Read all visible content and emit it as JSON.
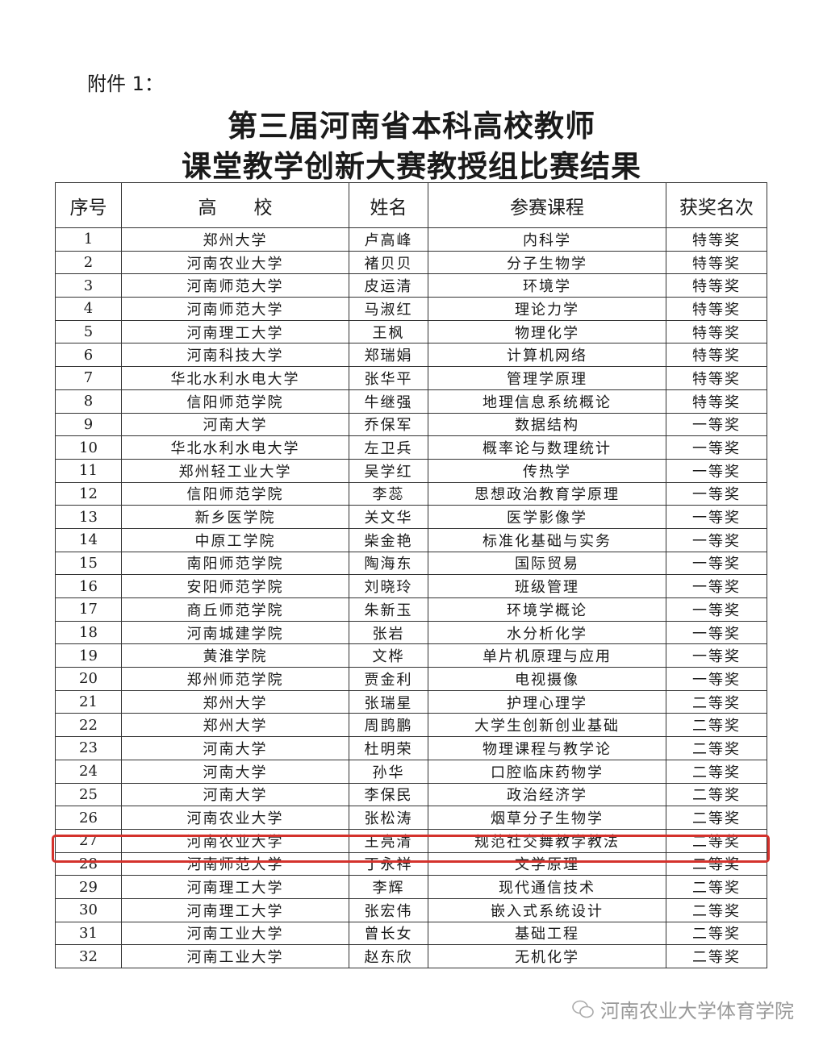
{
  "attachment_label": "附件 1：",
  "title_line1": "第三届河南省本科高校教师",
  "title_line2": "课堂教学创新大赛教授组比赛结果",
  "columns": [
    "序号",
    "高　　校",
    "姓名",
    "参赛课程",
    "获奖名次"
  ],
  "rows": [
    [
      "1",
      "郑州大学",
      "卢高峰",
      "内科学",
      "特等奖"
    ],
    [
      "2",
      "河南农业大学",
      "褚贝贝",
      "分子生物学",
      "特等奖"
    ],
    [
      "3",
      "河南师范大学",
      "皮运清",
      "环境学",
      "特等奖"
    ],
    [
      "4",
      "河南师范大学",
      "马淑红",
      "理论力学",
      "特等奖"
    ],
    [
      "5",
      "河南理工大学",
      "王枫",
      "物理化学",
      "特等奖"
    ],
    [
      "6",
      "河南科技大学",
      "郑瑞娟",
      "计算机网络",
      "特等奖"
    ],
    [
      "7",
      "华北水利水电大学",
      "张华平",
      "管理学原理",
      "特等奖"
    ],
    [
      "8",
      "信阳师范学院",
      "牛继强",
      "地理信息系统概论",
      "特等奖"
    ],
    [
      "9",
      "河南大学",
      "乔保军",
      "数据结构",
      "一等奖"
    ],
    [
      "10",
      "华北水利水电大学",
      "左卫兵",
      "概率论与数理统计",
      "一等奖"
    ],
    [
      "11",
      "郑州轻工业大学",
      "吴学红",
      "传热学",
      "一等奖"
    ],
    [
      "12",
      "信阳师范学院",
      "李蕊",
      "思想政治教育学原理",
      "一等奖"
    ],
    [
      "13",
      "新乡医学院",
      "关文华",
      "医学影像学",
      "一等奖"
    ],
    [
      "14",
      "中原工学院",
      "柴金艳",
      "标准化基础与实务",
      "一等奖"
    ],
    [
      "15",
      "南阳师范学院",
      "陶海东",
      "国际贸易",
      "一等奖"
    ],
    [
      "16",
      "安阳师范学院",
      "刘晓玲",
      "班级管理",
      "一等奖"
    ],
    [
      "17",
      "商丘师范学院",
      "朱新玉",
      "环境学概论",
      "一等奖"
    ],
    [
      "18",
      "河南城建学院",
      "张岩",
      "水分析化学",
      "一等奖"
    ],
    [
      "19",
      "黄淮学院",
      "文桦",
      "单片机原理与应用",
      "一等奖"
    ],
    [
      "20",
      "郑州师范学院",
      "贾金利",
      "电视摄像",
      "一等奖"
    ],
    [
      "21",
      "郑州大学",
      "张瑞星",
      "护理心理学",
      "二等奖"
    ],
    [
      "22",
      "郑州大学",
      "周鹍鹏",
      "大学生创新创业基础",
      "二等奖"
    ],
    [
      "23",
      "河南大学",
      "杜明荣",
      "物理课程与教学论",
      "二等奖"
    ],
    [
      "24",
      "河南大学",
      "孙华",
      "口腔临床药物学",
      "二等奖"
    ],
    [
      "25",
      "河南大学",
      "李保民",
      "政治经济学",
      "二等奖"
    ],
    [
      "26",
      "河南农业大学",
      "张松涛",
      "烟草分子生物学",
      "二等奖"
    ],
    [
      "27",
      "河南农业大学",
      "王亮清",
      "规范社交舞教学教法",
      "二等奖"
    ],
    [
      "28",
      "河南师范大学",
      "丁永祥",
      "文学原理",
      "二等奖"
    ],
    [
      "29",
      "河南理工大学",
      "李辉",
      "现代通信技术",
      "二等奖"
    ],
    [
      "30",
      "河南理工大学",
      "张宏伟",
      "嵌入式系统设计",
      "二等奖"
    ],
    [
      "31",
      "河南工业大学",
      "曾长女",
      "基础工程",
      "二等奖"
    ],
    [
      "32",
      "河南工业大学",
      "赵东欣",
      "无机化学",
      "二等奖"
    ]
  ],
  "highlighted_row": "27",
  "highlight_color": "#d4322c",
  "watermark": {
    "icon": "wechat-icon",
    "text": "河南农业大学体育学院"
  }
}
